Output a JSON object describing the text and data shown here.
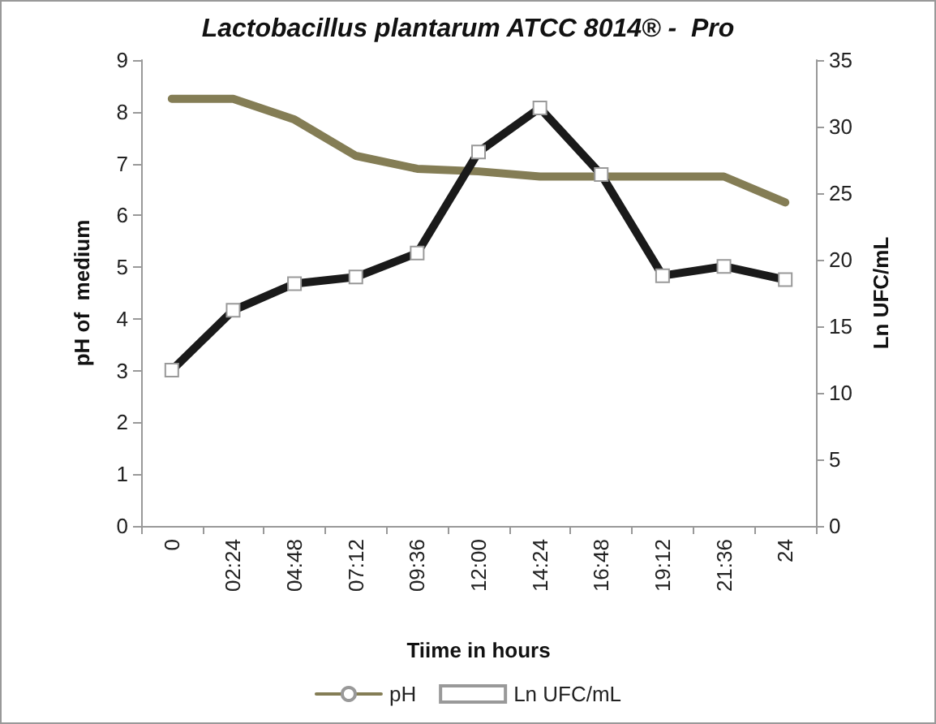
{
  "chart_data": {
    "type": "line",
    "title": "Lactobacillus plantarum ATCC 8014® -  Pro",
    "xlabel": "Tiime in hours",
    "ylabel": "pH of  medium",
    "y2label": "Ln UFC/mL",
    "categories": [
      "0",
      "02:24",
      "04:48",
      "07:12",
      "09:36",
      "12:00",
      "14:24",
      "16:48",
      "19:12",
      "21:36",
      "24"
    ],
    "series": [
      {
        "name": "pH",
        "color": "#847d55",
        "marker": "none",
        "values": [
          8.25,
          8.25,
          7.85,
          7.15,
          6.9,
          6.85,
          6.75,
          6.75,
          6.75,
          6.75,
          6.25
        ]
      },
      {
        "name": "Ln UFC/mL",
        "color": "#1a1a1a",
        "marker": "square",
        "axis": "y2",
        "values": [
          11.7,
          16.2,
          18.2,
          18.7,
          20.5,
          28.1,
          31.4,
          26.4,
          18.8,
          19.5,
          18.5
        ]
      }
    ],
    "ylim": [
      0,
      9
    ],
    "yticks": [
      0,
      1,
      2,
      3,
      4,
      5,
      6,
      7,
      8,
      9
    ],
    "y2lim": [
      0,
      35
    ],
    "y2ticks": [
      0,
      5,
      10,
      15,
      20,
      25,
      30,
      35
    ],
    "grid": false,
    "legend": "bottom",
    "line_style": "solid"
  }
}
